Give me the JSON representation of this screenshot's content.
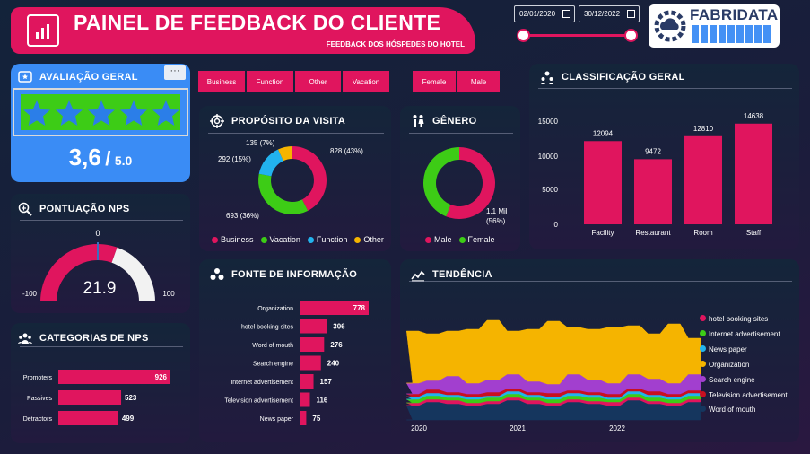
{
  "header": {
    "title": "PAINEL DE FEEDBACK DO CLIENTE",
    "subtitle": "FEEDBACK DOS HÓSPEDES DO HOTEL",
    "date_start": "02/01/2020",
    "date_end": "30/12/2022",
    "brand": "FABRIDATA"
  },
  "rating": {
    "title": "AVALIAÇÃO GERAL",
    "value": "3,6",
    "separator": "/",
    "max": "5.0",
    "stars_filled": 3.6,
    "stars_total": 5,
    "more_label": "···"
  },
  "filters": {
    "purpose": [
      "Business",
      "Function",
      "Other",
      "Vacation"
    ],
    "gender": [
      "Female",
      "Male"
    ]
  },
  "nps": {
    "title": "PONTUAÇÃO NPS",
    "value": "21.9",
    "value_num": 21.9,
    "min": "-100",
    "max": "100",
    "zero": "0"
  },
  "nps_categories": {
    "title": "CATEGORIAS DE NPS",
    "labels": [
      "Promoters",
      "Passives",
      "Detractors"
    ],
    "values": [
      926,
      523,
      499
    ],
    "value_labels": [
      "926",
      "523",
      "499"
    ]
  },
  "purpose": {
    "title": "PROPÓSITO DA VISITA",
    "data_labels": [
      "828 (43%)",
      "693 (36%)",
      "292 (15%)",
      "135 (7%)"
    ]
  },
  "gender": {
    "title": "GÊNERO",
    "data_label_line1": "1,1 Mil",
    "data_label_line2": "(56%)"
  },
  "sources": {
    "title": "FONTE DE INFORMAÇÃO",
    "labels": [
      "Organization",
      "hotel booking sites",
      "Word of mouth",
      "Search engine",
      "Internet advertisement",
      "Television advertisement",
      "News paper"
    ],
    "values": [
      778,
      306,
      276,
      240,
      157,
      116,
      75
    ],
    "value_labels": [
      "778",
      "306",
      "276",
      "240",
      "157",
      "116",
      "75"
    ]
  },
  "classification": {
    "title": "CLASSIFICAÇÃO GERAL",
    "categories": [
      "Facility",
      "Restaurant",
      "Room",
      "Staff"
    ],
    "values": [
      12094,
      9472,
      12810,
      14638
    ],
    "value_labels": [
      "12094",
      "9472",
      "12810",
      "14638"
    ],
    "ticks": [
      "15000",
      "10000",
      "5000",
      "0"
    ]
  },
  "trend": {
    "title": "TENDÊNCIA",
    "x_ticks": [
      "2020",
      "2021",
      "2022"
    ],
    "legend": [
      "hotel booking sites",
      "Internet advertisement",
      "News paper",
      "Organization",
      "Search engine",
      "Television advertisement",
      "Word of mouth"
    ]
  },
  "colors": {
    "accent": "#e0155e",
    "vacation": "#3dcc16",
    "function": "#22b3ee",
    "other": "#f5b400",
    "rating_bg": "#3a8cf5",
    "search_engine": "#a23fcf",
    "tv": "#c81020",
    "word_of_mouth": "#15365e"
  },
  "chart_data": [
    {
      "type": "pie",
      "title": "PROPÓSITO DA VISITA",
      "categories": [
        "Business",
        "Vacation",
        "Function",
        "Other"
      ],
      "values": [
        828,
        693,
        292,
        135
      ],
      "labels": [
        "828 (43%)",
        "693 (36%)",
        "292 (15%)",
        "135 (7%)"
      ]
    },
    {
      "type": "pie",
      "title": "GÊNERO",
      "categories": [
        "Male",
        "Female"
      ],
      "values": [
        56,
        44
      ]
    },
    {
      "type": "bar",
      "title": "CLASSIFICAÇÃO GERAL",
      "categories": [
        "Facility",
        "Restaurant",
        "Room",
        "Staff"
      ],
      "values": [
        12094,
        9472,
        12810,
        14638
      ],
      "ylim": [
        0,
        15000
      ]
    },
    {
      "type": "bar",
      "orientation": "horizontal",
      "title": "FONTE DE INFORMAÇÃO",
      "categories": [
        "Organization",
        "hotel booking sites",
        "Word of mouth",
        "Search engine",
        "Internet advertisement",
        "Television advertisement",
        "News paper"
      ],
      "values": [
        778,
        306,
        276,
        240,
        157,
        116,
        75
      ]
    },
    {
      "type": "bar",
      "orientation": "horizontal",
      "title": "CATEGORIAS DE NPS",
      "categories": [
        "Promoters",
        "Passives",
        "Detractors"
      ],
      "values": [
        926,
        523,
        499
      ]
    },
    {
      "type": "area",
      "title": "TENDÊNCIA",
      "x_ticks": [
        "2020",
        "2021",
        "2022"
      ],
      "series": [
        {
          "name": "hotel booking sites"
        },
        {
          "name": "Internet advertisement"
        },
        {
          "name": "News paper"
        },
        {
          "name": "Organization"
        },
        {
          "name": "Search engine"
        },
        {
          "name": "Television advertisement"
        },
        {
          "name": "Word of mouth"
        }
      ]
    }
  ]
}
